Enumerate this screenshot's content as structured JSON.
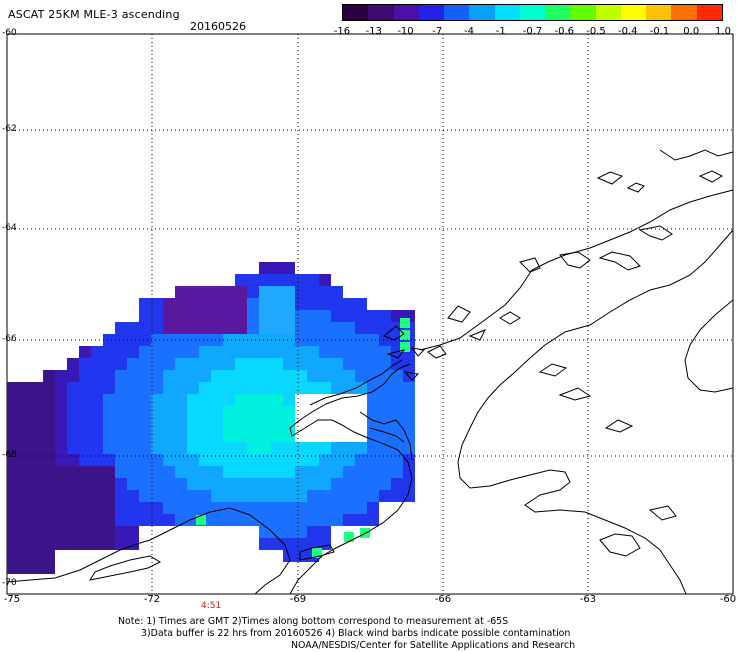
{
  "header": {
    "title": "ASCAT 25KM MLE-3 ascending",
    "date": "20160526"
  },
  "colorbar": {
    "colors": [
      "#2a0040",
      "#3e0a70",
      "#4a10a8",
      "#2222e8",
      "#1460ff",
      "#08a0ff",
      "#00e0ff",
      "#00ffd0",
      "#20ff60",
      "#60ff00",
      "#c0ff00",
      "#ffff00",
      "#ffc000",
      "#ff7000",
      "#ff2800"
    ],
    "tick_labels": [
      "-16",
      "-13",
      "-10",
      "-7",
      "-4",
      "-1",
      "-0.7",
      "-0.6",
      "-0.5",
      "-0.4",
      "-0.1",
      "0.0",
      "1.0"
    ]
  },
  "map": {
    "lat_labels": [
      "-60",
      "-62",
      "-64",
      "-66",
      "-68",
      "-70"
    ],
    "lon_labels": [
      "-75",
      "-72",
      "-69",
      "-66",
      "-63",
      "-60"
    ],
    "pass_time": "4:51"
  },
  "notes": {
    "line1": "Note: 1) Times are GMT 2)Times along bottom correspond to measurement at -65S",
    "line2": "3)Data buffer is 22 hrs from 20160526 4) Black wind barbs indicate possible contamination",
    "line3": "NOAA/NESDIS/Center for Satellite Applications and Research"
  }
}
